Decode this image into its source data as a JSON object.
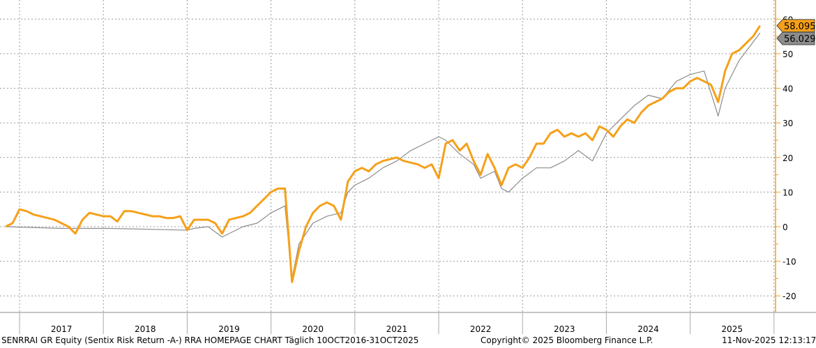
{
  "chart_data": {
    "type": "line",
    "title": "",
    "xlabel": "",
    "ylabel": "",
    "ylim": [
      -22,
      62
    ],
    "yticks": [
      -20,
      -10,
      0,
      10,
      20,
      30,
      40,
      50,
      60
    ],
    "xticks": [
      "2017",
      "2018",
      "2019",
      "2020",
      "2021",
      "2022",
      "2023",
      "2024",
      "2025"
    ],
    "grid": true,
    "axis_side": "right",
    "series": [
      {
        "color": "#f5a01a",
        "last_value_label": "58.0953",
        "points": [
          [
            "2016-10",
            0
          ],
          [
            "2016-11",
            1
          ],
          [
            "2016-12",
            5
          ],
          [
            "2017-01",
            4.5
          ],
          [
            "2017-02",
            3.5
          ],
          [
            "2017-03",
            3
          ],
          [
            "2017-04",
            2.5
          ],
          [
            "2017-05",
            2
          ],
          [
            "2017-06",
            1
          ],
          [
            "2017-07",
            0
          ],
          [
            "2017-08",
            -2
          ],
          [
            "2017-09",
            2
          ],
          [
            "2017-10",
            4
          ],
          [
            "2017-11",
            3.5
          ],
          [
            "2017-12",
            3
          ],
          [
            "2018-01",
            3
          ],
          [
            "2018-02",
            1.5
          ],
          [
            "2018-03",
            4.5
          ],
          [
            "2018-04",
            4.5
          ],
          [
            "2018-05",
            4
          ],
          [
            "2018-06",
            3.5
          ],
          [
            "2018-07",
            3
          ],
          [
            "2018-08",
            3
          ],
          [
            "2018-09",
            2.5
          ],
          [
            "2018-10",
            2.5
          ],
          [
            "2018-11",
            3
          ],
          [
            "2018-12",
            -1
          ],
          [
            "2019-01",
            2
          ],
          [
            "2019-02",
            2
          ],
          [
            "2019-03",
            2
          ],
          [
            "2019-04",
            1
          ],
          [
            "2019-05",
            -2
          ],
          [
            "2019-06",
            2
          ],
          [
            "2019-07",
            2.5
          ],
          [
            "2019-08",
            3
          ],
          [
            "2019-09",
            4
          ],
          [
            "2019-10",
            6
          ],
          [
            "2019-11",
            8
          ],
          [
            "2019-12",
            10
          ],
          [
            "2020-01",
            11
          ],
          [
            "2020-02",
            11
          ],
          [
            "2020-03",
            -16
          ],
          [
            "2020-04",
            -7
          ],
          [
            "2020-05",
            0
          ],
          [
            "2020-06",
            4
          ],
          [
            "2020-07",
            6
          ],
          [
            "2020-08",
            7
          ],
          [
            "2020-09",
            6
          ],
          [
            "2020-10",
            2
          ],
          [
            "2020-11",
            13
          ],
          [
            "2020-12",
            16
          ],
          [
            "2021-01",
            17
          ],
          [
            "2021-02",
            16
          ],
          [
            "2021-03",
            18
          ],
          [
            "2021-04",
            19
          ],
          [
            "2021-05",
            19.5
          ],
          [
            "2021-06",
            20
          ],
          [
            "2021-07",
            19
          ],
          [
            "2021-08",
            18.5
          ],
          [
            "2021-09",
            18
          ],
          [
            "2021-10",
            17
          ],
          [
            "2021-11",
            18
          ],
          [
            "2021-12",
            14
          ],
          [
            "2022-01",
            24
          ],
          [
            "2022-02",
            25
          ],
          [
            "2022-03",
            22
          ],
          [
            "2022-04",
            24
          ],
          [
            "2022-05",
            19
          ],
          [
            "2022-06",
            15
          ],
          [
            "2022-07",
            21
          ],
          [
            "2022-08",
            17
          ],
          [
            "2022-09",
            12
          ],
          [
            "2022-10",
            17
          ],
          [
            "2022-11",
            18
          ],
          [
            "2022-12",
            17
          ],
          [
            "2023-01",
            20
          ],
          [
            "2023-02",
            24
          ],
          [
            "2023-03",
            24
          ],
          [
            "2023-04",
            27
          ],
          [
            "2023-05",
            28
          ],
          [
            "2023-06",
            26
          ],
          [
            "2023-07",
            27
          ],
          [
            "2023-08",
            26
          ],
          [
            "2023-09",
            27
          ],
          [
            "2023-10",
            25
          ],
          [
            "2023-11",
            29
          ],
          [
            "2023-12",
            28
          ],
          [
            "2024-01",
            26
          ],
          [
            "2024-02",
            29
          ],
          [
            "2024-03",
            31
          ],
          [
            "2024-04",
            30
          ],
          [
            "2024-05",
            33
          ],
          [
            "2024-06",
            35
          ],
          [
            "2024-07",
            36
          ],
          [
            "2024-08",
            37
          ],
          [
            "2024-09",
            39
          ],
          [
            "2024-10",
            40
          ],
          [
            "2024-11",
            40
          ],
          [
            "2024-12",
            42
          ],
          [
            "2025-01",
            43
          ],
          [
            "2025-02",
            42
          ],
          [
            "2025-03",
            41
          ],
          [
            "2025-04",
            36
          ],
          [
            "2025-05",
            45
          ],
          [
            "2025-06",
            50
          ],
          [
            "2025-07",
            51
          ],
          [
            "2025-08",
            53
          ],
          [
            "2025-09",
            55
          ],
          [
            "2025-10",
            58.0953
          ]
        ]
      },
      {
        "color": "#8c8c8c",
        "last_value_label": "56.0297",
        "points": [
          [
            "2016-10",
            0
          ],
          [
            "2017-06",
            -0.5
          ],
          [
            "2018-01",
            -0.5
          ],
          [
            "2018-12",
            -1
          ],
          [
            "2019-01",
            -0.5
          ],
          [
            "2019-03",
            0
          ],
          [
            "2019-05",
            -3
          ],
          [
            "2019-08",
            0
          ],
          [
            "2019-10",
            1
          ],
          [
            "2019-12",
            4
          ],
          [
            "2020-02",
            6
          ],
          [
            "2020-03",
            -15
          ],
          [
            "2020-04",
            -5
          ],
          [
            "2020-06",
            1
          ],
          [
            "2020-08",
            3
          ],
          [
            "2020-10",
            4
          ],
          [
            "2020-11",
            10
          ],
          [
            "2020-12",
            12
          ],
          [
            "2021-02",
            14
          ],
          [
            "2021-04",
            17
          ],
          [
            "2021-06",
            19
          ],
          [
            "2021-08",
            22
          ],
          [
            "2021-10",
            24
          ],
          [
            "2021-12",
            26
          ],
          [
            "2022-01",
            25
          ],
          [
            "2022-03",
            21
          ],
          [
            "2022-05",
            18
          ],
          [
            "2022-06",
            14
          ],
          [
            "2022-08",
            16
          ],
          [
            "2022-09",
            11
          ],
          [
            "2022-10",
            10
          ],
          [
            "2022-12",
            14
          ],
          [
            "2023-02",
            17
          ],
          [
            "2023-04",
            17
          ],
          [
            "2023-06",
            19
          ],
          [
            "2023-08",
            22
          ],
          [
            "2023-10",
            19
          ],
          [
            "2023-12",
            27
          ],
          [
            "2024-02",
            31
          ],
          [
            "2024-04",
            35
          ],
          [
            "2024-06",
            38
          ],
          [
            "2024-08",
            37
          ],
          [
            "2024-10",
            42
          ],
          [
            "2024-12",
            44
          ],
          [
            "2025-02",
            45
          ],
          [
            "2025-04",
            32
          ],
          [
            "2025-05",
            40
          ],
          [
            "2025-07",
            48
          ],
          [
            "2025-10",
            56.0297
          ]
        ]
      }
    ]
  },
  "footer": {
    "description": "SENRRAI GR Equity (Sentix Risk Return -A-) RRA HOMEPAGE CHART Täglich 10OCT2016-31OCT2025",
    "copyright": "Copyright© 2025 Bloomberg Finance L.P.",
    "timestamp": "11-Nov-2025 12:13:17"
  }
}
